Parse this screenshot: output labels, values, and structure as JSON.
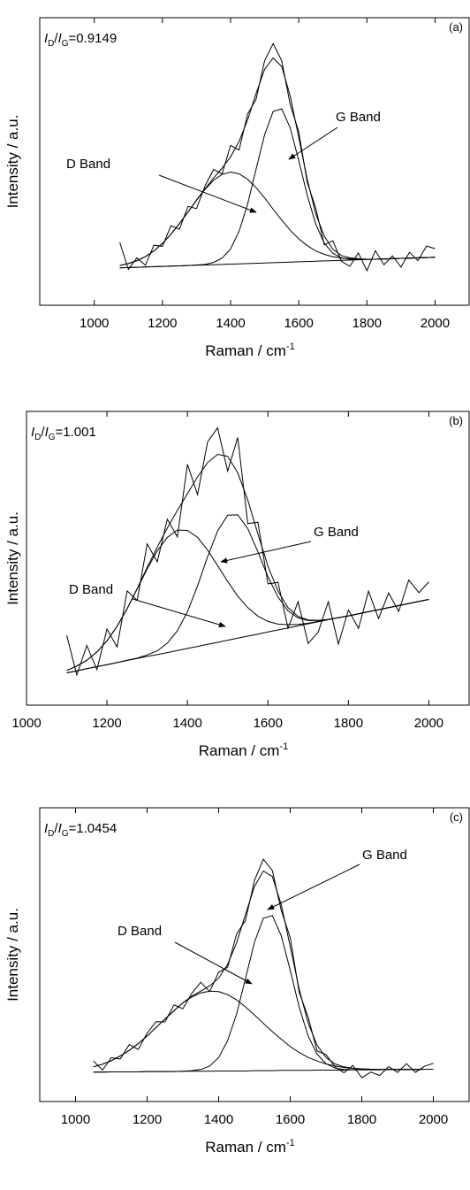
{
  "chart_data": [
    {
      "type": "line",
      "panel_label": "(a)",
      "ratio_label": [
        "I",
        "D",
        "/",
        "I",
        "G",
        "=0.9149"
      ],
      "xlabel": "Raman / cm",
      "xlabel_superscript": "-1",
      "ylabel": "Intensity / a.u.",
      "annotations": [
        "D Band",
        "G Band"
      ],
      "xlim": [
        840,
        2100
      ],
      "xticks": [
        1000,
        1200,
        1400,
        1600,
        1800,
        2000
      ],
      "ylim": [
        0,
        100
      ],
      "x": [
        1075,
        1100,
        1125,
        1150,
        1175,
        1200,
        1225,
        1250,
        1275,
        1300,
        1325,
        1350,
        1375,
        1400,
        1425,
        1450,
        1475,
        1500,
        1525,
        1550,
        1575,
        1600,
        1625,
        1650,
        1675,
        1700,
        1725,
        1750,
        1775,
        1800,
        1825,
        1850,
        1875,
        1900,
        1925,
        1950,
        1975,
        2000
      ],
      "series": [
        {
          "color": "#000000",
          "values": [
            21.8,
            12.5,
            16.5,
            13.9,
            20.9,
            20.5,
            27.7,
            26.4,
            34.4,
            33.6,
            41.5,
            47.2,
            45.7,
            55.6,
            54.0,
            66.5,
            71.7,
            85.1,
            91.0,
            85.0,
            69.8,
            60.4,
            42.7,
            33.8,
            21.0,
            22.5,
            15.3,
            13.5,
            18.2,
            12.0,
            19.0,
            14.1,
            17.2,
            13.3,
            18.4,
            15.5,
            20.6,
            19.7
          ]
        },
        {
          "color": "#000000",
          "values": [
            13.8,
            14.5,
            15.5,
            16.9,
            18.9,
            21.5,
            24.7,
            28.4,
            32.4,
            36.6,
            40.5,
            44.2,
            47.7,
            51.6,
            57.0,
            64.5,
            73.7,
            82.1,
            86.0,
            83.0,
            72.8,
            58.4,
            43.7,
            31.8,
            24.0,
            19.5,
            17.3,
            16.5,
            16.2,
            16.0,
            16.0,
            16.1,
            16.2,
            16.3,
            16.4,
            16.5,
            16.6,
            16.7
          ]
        },
        {
          "color": "#000000",
          "values": [
            13.8,
            14.5,
            15.5,
            16.9,
            18.9,
            21.5,
            24.7,
            28.4,
            32.4,
            36.5,
            40.3,
            43.4,
            45.5,
            46.3,
            45.7,
            43.8,
            40.9,
            37.3,
            33.4,
            29.6,
            26.1,
            23.1,
            20.7,
            18.9,
            17.7,
            16.9,
            16.4,
            16.2,
            16.1,
            16.0,
            16.0,
            16.1,
            16.2,
            16.3,
            16.4,
            16.5,
            16.6,
            16.7
          ]
        },
        {
          "color": "#000000",
          "values": [
            13.0,
            13.1,
            13.2,
            13.3,
            13.4,
            13.5,
            13.6,
            13.7,
            13.8,
            14.0,
            14.2,
            14.9,
            16.4,
            19.6,
            25.7,
            35.2,
            47.4,
            59.4,
            67.4,
            68.3,
            61.7,
            50.4,
            38.2,
            28.2,
            21.6,
            18.1,
            16.5,
            16.0,
            15.9,
            15.9,
            16.0,
            16.1,
            16.2,
            16.3,
            16.4,
            16.5,
            16.6,
            16.7
          ]
        },
        {
          "color": "#000000",
          "values": [
            13.0,
            13.1,
            13.2,
            13.3,
            13.4,
            13.5,
            13.6,
            13.7,
            13.8,
            13.9,
            14.0,
            14.1,
            14.2,
            14.3,
            14.4,
            14.5,
            14.6,
            14.7,
            14.8,
            14.9,
            15.0,
            15.1,
            15.2,
            15.3,
            15.4,
            15.5,
            15.6,
            15.7,
            15.8,
            15.9,
            16.0,
            16.1,
            16.2,
            16.3,
            16.4,
            16.5,
            16.6,
            16.7
          ]
        }
      ]
    },
    {
      "type": "line",
      "panel_label": "(b)",
      "ratio_label": [
        "I",
        "D",
        "/",
        "I",
        "G",
        "=1.001"
      ],
      "xlabel": "Raman / cm",
      "xlabel_superscript": "-1",
      "ylabel": "Intensity / a.u.",
      "annotations": [
        "D Band",
        "G Band"
      ],
      "xlim": [
        1000,
        2100
      ],
      "xticks": [
        1000,
        1200,
        1400,
        1600,
        1800,
        2000
      ],
      "ylim": [
        0,
        100
      ],
      "x": [
        1100,
        1125,
        1150,
        1175,
        1200,
        1225,
        1250,
        1275,
        1300,
        1325,
        1350,
        1375,
        1400,
        1425,
        1450,
        1475,
        1500,
        1525,
        1550,
        1575,
        1600,
        1625,
        1650,
        1675,
        1700,
        1725,
        1750,
        1775,
        1800,
        1825,
        1850,
        1875,
        1900,
        1925,
        1950,
        1975,
        2000
      ],
      "series": [
        {
          "color": "#000000",
          "values": [
            23.8,
            10.3,
            20.3,
            12.1,
            25.9,
            19.8,
            38.9,
            35.7,
            54.9,
            48.8,
            63.3,
            57.3,
            82.0,
            71.7,
            89.6,
            94.4,
            79.7,
            91.1,
            61.8,
            62.3,
            41.3,
            41.8,
            26.2,
            35.2,
            21.0,
            24.9,
            35.2,
            20.8,
            32.4,
            26.1,
            38.8,
            29.5,
            38.2,
            31.9,
            42.6,
            38.3,
            42.0
          ]
        },
        {
          "color": "#000000",
          "values": [
            11.8,
            13.3,
            15.3,
            18.1,
            21.9,
            26.8,
            32.9,
            39.7,
            46.9,
            53.8,
            60.3,
            66.3,
            72.0,
            77.7,
            82.6,
            85.4,
            84.7,
            79.1,
            69.8,
            58.3,
            47.3,
            38.8,
            33.2,
            30.2,
            29.0,
            28.9,
            29.2,
            29.8,
            30.4,
            31.1,
            31.8,
            32.5,
            33.2,
            33.9,
            34.6,
            35.3,
            36.0
          ]
        },
        {
          "color": "#000000",
          "values": [
            11.8,
            13.3,
            15.3,
            18.1,
            21.9,
            26.8,
            32.8,
            39.6,
            46.4,
            52.5,
            57.1,
            59.6,
            59.5,
            57.1,
            52.8,
            47.5,
            42.1,
            37.1,
            33.2,
            30.3,
            28.5,
            27.6,
            27.4,
            27.5,
            27.9,
            28.5,
            29.1,
            29.8,
            30.4,
            31.1,
            31.8,
            32.5,
            33.2,
            33.9,
            34.6,
            35.3,
            36.0
          ]
        },
        {
          "color": "#000000",
          "values": [
            11.0,
            11.7,
            12.4,
            13.1,
            13.8,
            14.5,
            15.3,
            16.0,
            17.1,
            18.5,
            21.1,
            25.3,
            31.8,
            40.6,
            50.5,
            59.3,
            64.7,
            64.8,
            60.1,
            52.2,
            43.7,
            36.8,
            32.1,
            29.7,
            28.8,
            28.8,
            29.2,
            29.8,
            30.4,
            31.1,
            31.8,
            32.5,
            33.2,
            33.9,
            34.6,
            35.3,
            36.0
          ]
        },
        {
          "color": "#000000",
          "values": [
            11.0,
            11.7,
            12.4,
            13.1,
            13.8,
            14.5,
            15.2,
            15.9,
            16.6,
            17.2,
            17.9,
            18.6,
            19.3,
            20.0,
            20.7,
            21.4,
            22.1,
            22.8,
            23.5,
            24.2,
            24.9,
            25.6,
            26.3,
            27.0,
            27.7,
            28.4,
            29.1,
            29.8,
            30.4,
            31.1,
            31.8,
            32.5,
            33.2,
            33.9,
            34.6,
            35.3,
            36.0
          ]
        }
      ]
    },
    {
      "type": "line",
      "panel_label": "(c)",
      "ratio_label": [
        "I",
        "D",
        "/",
        "I",
        "G",
        "=1.0454"
      ],
      "xlabel": "Raman / cm",
      "xlabel_superscript": "-1",
      "ylabel": "Intensity / a.u.",
      "annotations": [
        "D Band",
        "G Band"
      ],
      "xlim": [
        900,
        2100
      ],
      "xticks": [
        1000,
        1200,
        1400,
        1600,
        1800,
        2000
      ],
      "ylim": [
        0,
        100
      ],
      "x": [
        1050,
        1075,
        1100,
        1125,
        1150,
        1175,
        1200,
        1225,
        1250,
        1275,
        1300,
        1325,
        1350,
        1375,
        1400,
        1425,
        1450,
        1475,
        1500,
        1525,
        1550,
        1575,
        1600,
        1625,
        1650,
        1675,
        1700,
        1725,
        1750,
        1775,
        1800,
        1825,
        1850,
        1875,
        1900,
        1925,
        1950,
        1975,
        2000
      ],
      "series": [
        {
          "color": "#000000",
          "values": [
            13.8,
            10.7,
            14.9,
            14.5,
            19.4,
            17.7,
            23.3,
            27.2,
            27.1,
            32.9,
            31.6,
            36.8,
            40.6,
            37.4,
            44.0,
            45.7,
            57.0,
            61.7,
            75.2,
            82.5,
            78.6,
            65.0,
            55.8,
            37.3,
            28.7,
            17.2,
            16.0,
            11.8,
            9.8,
            12.3,
            8.1,
            10.0,
            8.9,
            11.9,
            9.9,
            12.9,
            9.9,
            12.0,
            13.0
          ]
        },
        {
          "color": "#000000",
          "values": [
            11.8,
            12.7,
            13.9,
            15.5,
            17.4,
            19.7,
            22.3,
            25.2,
            28.1,
            30.9,
            33.6,
            35.8,
            37.6,
            39.4,
            42.0,
            46.7,
            54.0,
            63.7,
            73.2,
            78.5,
            76.6,
            67.0,
            52.8,
            38.3,
            26.7,
            19.2,
            15.0,
            12.8,
            11.8,
            11.3,
            11.1,
            11.0,
            10.9,
            10.9,
            10.9,
            10.9,
            10.9,
            11.0,
            11.0
          ]
        },
        {
          "color": "#000000",
          "values": [
            11.8,
            12.7,
            13.9,
            15.5,
            17.4,
            19.7,
            22.3,
            25.2,
            28.1,
            30.9,
            33.6,
            35.6,
            37.0,
            37.6,
            37.4,
            36.4,
            34.6,
            32.2,
            29.5,
            26.6,
            23.8,
            21.2,
            18.7,
            16.7,
            15.0,
            13.8,
            12.8,
            12.1,
            11.6,
            11.3,
            11.1,
            11.0,
            10.9,
            10.9,
            10.9,
            10.9,
            10.9,
            11.0,
            11.0
          ]
        },
        {
          "color": "#000000",
          "values": [
            10.0,
            10.0,
            10.1,
            10.1,
            10.1,
            10.1,
            10.2,
            10.2,
            10.2,
            10.2,
            10.3,
            10.5,
            10.9,
            12.1,
            15.0,
            20.7,
            29.8,
            41.9,
            54.2,
            62.4,
            63.3,
            56.4,
            44.7,
            32.2,
            22.3,
            16.1,
            12.9,
            11.4,
            10.9,
            10.8,
            10.8,
            10.8,
            10.8,
            10.9,
            10.9,
            10.9,
            10.9,
            11.0,
            11.0
          ]
        },
        {
          "color": "#000000",
          "values": [
            10.0,
            10.0,
            10.1,
            10.1,
            10.1,
            10.1,
            10.2,
            10.2,
            10.2,
            10.2,
            10.3,
            10.3,
            10.3,
            10.3,
            10.4,
            10.4,
            10.4,
            10.4,
            10.5,
            10.5,
            10.5,
            10.6,
            10.6,
            10.6,
            10.6,
            10.7,
            10.7,
            10.7,
            10.7,
            10.8,
            10.8,
            10.8,
            10.8,
            10.9,
            10.9,
            10.9,
            10.9,
            11.0,
            11.0
          ]
        }
      ]
    }
  ]
}
